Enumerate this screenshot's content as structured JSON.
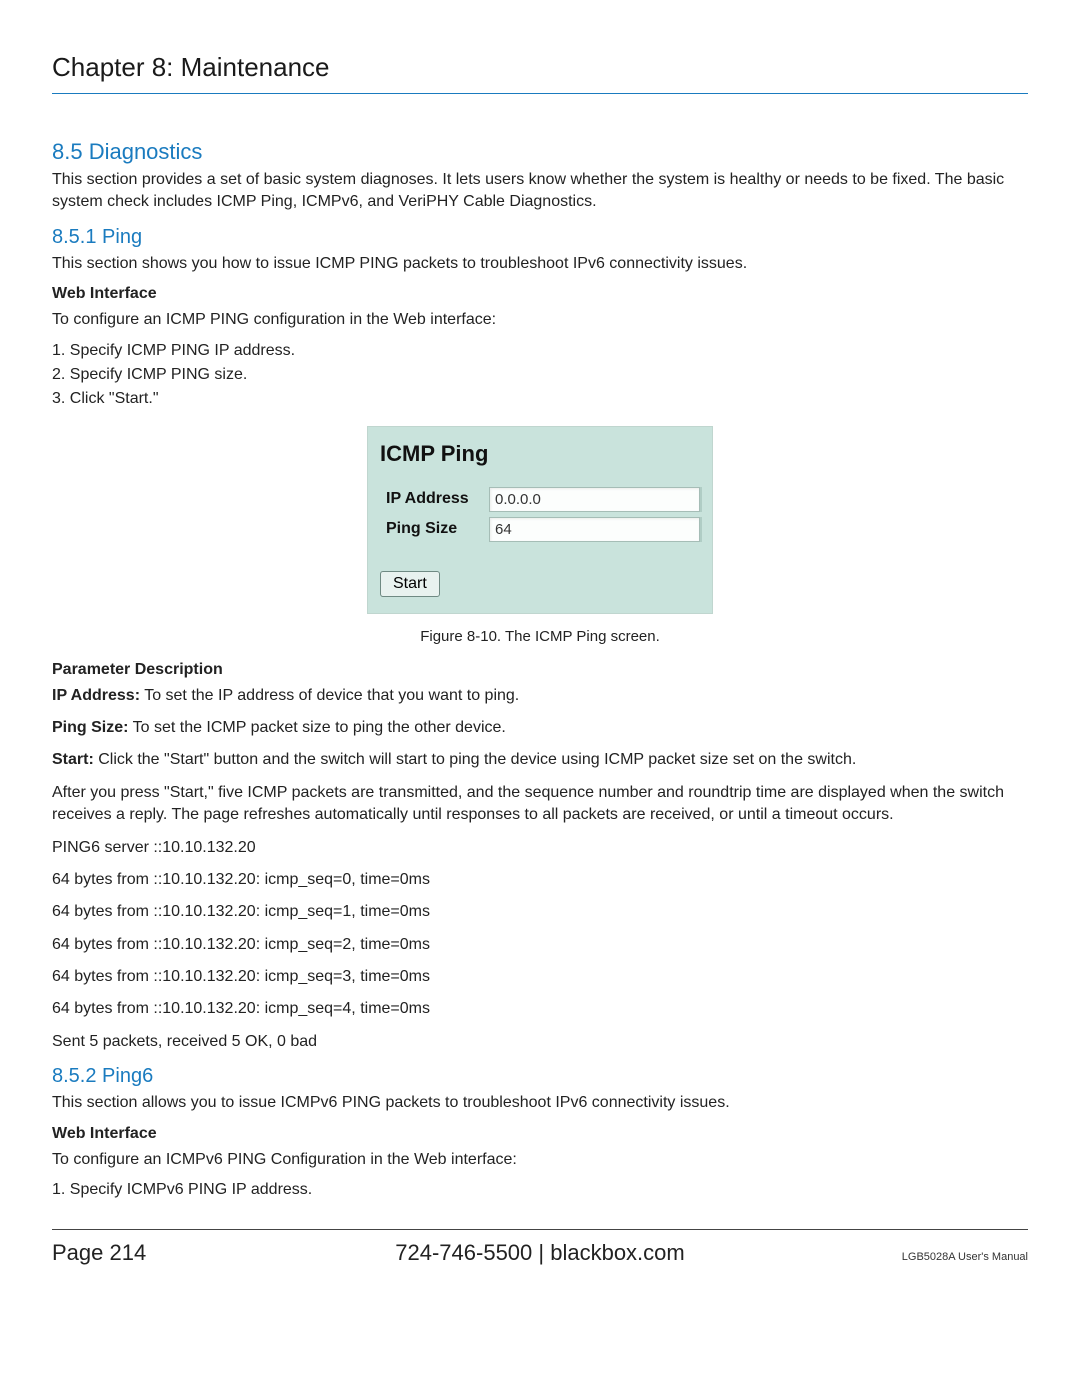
{
  "chapter_title": "Chapter 8: Maintenance",
  "section_diag": {
    "heading": "8.5 Diagnostics",
    "body": "This section provides a set of basic system diagnoses. It lets users know whether the system is healthy or needs to be fixed. The basic system check includes ICMP Ping, ICMPv6, and VeriPHY Cable Diagnostics."
  },
  "section_ping": {
    "heading": "8.5.1 Ping",
    "body": "This section shows you how to issue ICMP PING packets to troubleshoot IPv6 connectivity issues.",
    "web_interface_heading": "Web Interface",
    "web_interface_intro": "To configure an ICMP PING configuration in the Web interface:",
    "steps": [
      "1. Specify ICMP PING IP address.",
      "2. Specify ICMP PING size.",
      "3. Click \"Start.\""
    ]
  },
  "icmp_box": {
    "title": "ICMP Ping",
    "ip_label": "IP Address",
    "ip_value": "0.0.0.0",
    "size_label": "Ping Size",
    "size_value": "64",
    "start_label": "Start",
    "bg_color": "#c9e3dc"
  },
  "fig_caption": "Figure 8-10. The ICMP Ping screen.",
  "param_desc": {
    "heading": "Parameter Description",
    "ip_label": "IP Address:",
    "ip_text": " To set the IP address of device that you want to ping.",
    "size_label": "Ping Size:",
    "size_text": " To set the ICMP packet size to ping the other device.",
    "start_label": "Start:",
    "start_text": " Click the \"Start\" button and the switch will start to ping the device using ICMP packet size set on the switch.",
    "after_start": "After you press \"Start,\" five ICMP packets are transmitted, and the sequence number and roundtrip time are displayed when the switch receives a reply. The page refreshes automatically until responses to all packets are received, or until a timeout occurs."
  },
  "ping_output": [
    "PING6 server ::10.10.132.20",
    "64 bytes from ::10.10.132.20: icmp_seq=0, time=0ms",
    "64 bytes from ::10.10.132.20: icmp_seq=1, time=0ms",
    "64 bytes from ::10.10.132.20: icmp_seq=2, time=0ms",
    "64 bytes from ::10.10.132.20: icmp_seq=3, time=0ms",
    "64 bytes from ::10.10.132.20: icmp_seq=4, time=0ms",
    "Sent 5 packets, received 5 OK, 0 bad"
  ],
  "section_ping6": {
    "heading": "8.5.2 Ping6",
    "body": "This section allows you to issue ICMPv6 PING packets to troubleshoot IPv6 connectivity issues.",
    "web_interface_heading": "Web Interface",
    "web_interface_intro": "To configure an ICMPv6 PING Configuration in the Web interface:",
    "step1": "1. Specify ICMPv6 PING IP address."
  },
  "footer": {
    "page_label": "Page 214",
    "center": "724-746-5500   |   blackbox.com",
    "right": "LGB5028A User's Manual"
  }
}
